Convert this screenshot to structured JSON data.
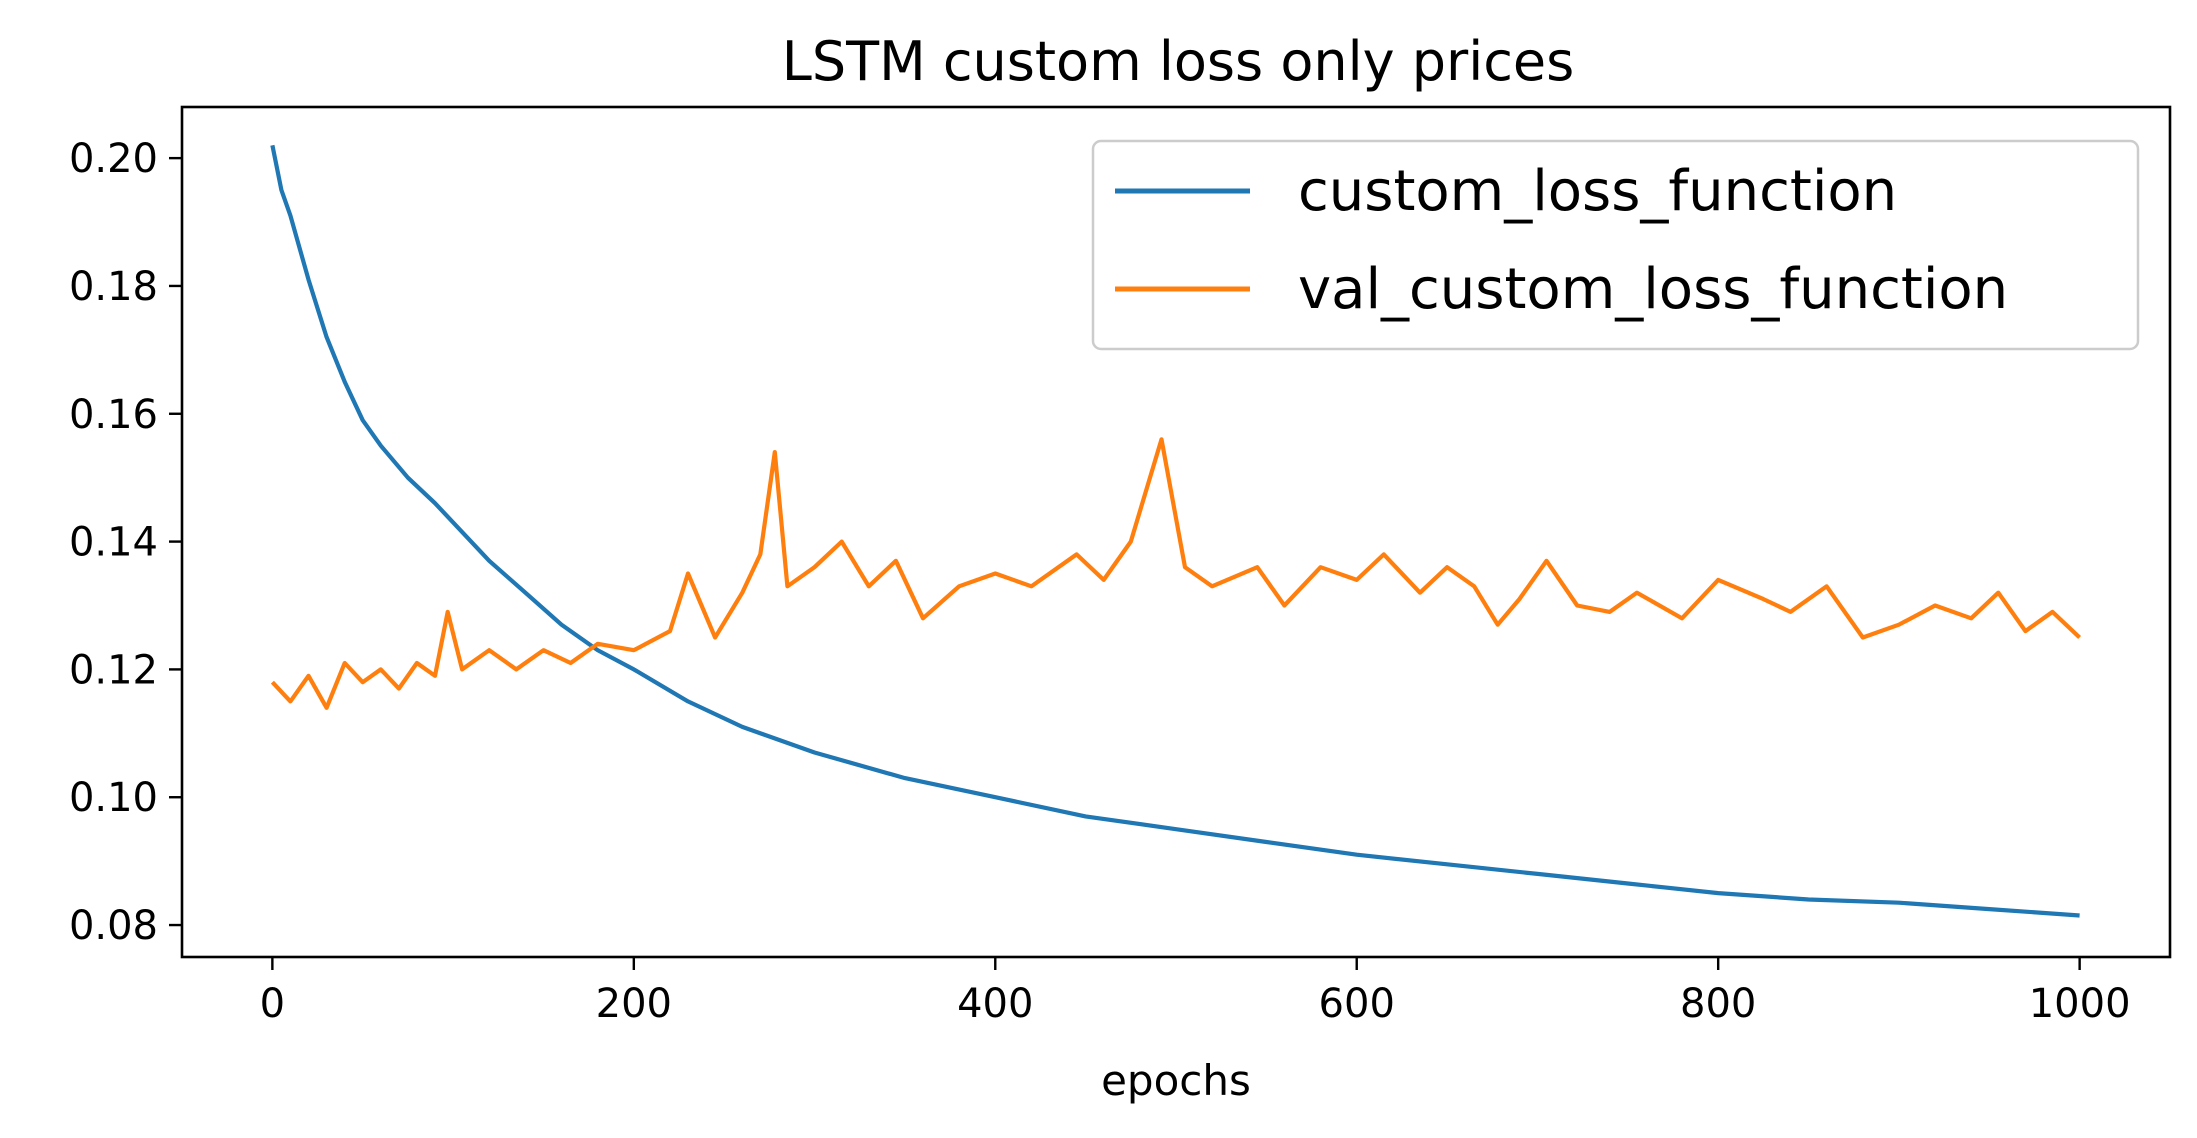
{
  "chart_data": {
    "type": "line",
    "title": "LSTM custom loss only prices",
    "xlabel": "epochs",
    "ylabel": "",
    "xlim": [
      -50,
      1050
    ],
    "ylim": [
      0.075,
      0.208
    ],
    "xticks": [
      0,
      200,
      400,
      600,
      800,
      1000
    ],
    "xtick_labels": [
      "0",
      "200",
      "400",
      "600",
      "800",
      "1000"
    ],
    "yticks": [
      0.08,
      0.1,
      0.12,
      0.14,
      0.16,
      0.18,
      0.2
    ],
    "ytick_labels": [
      "0.08",
      "0.10",
      "0.12",
      "0.14",
      "0.16",
      "0.18",
      "0.20"
    ],
    "grid": false,
    "legend_position": "top-right",
    "colors": {
      "custom_loss_function": "#1f77b4",
      "val_custom_loss_function": "#ff7f0e"
    },
    "series": [
      {
        "name": "custom_loss_function",
        "x": [
          0,
          5,
          10,
          20,
          30,
          40,
          50,
          60,
          75,
          90,
          100,
          120,
          140,
          160,
          180,
          200,
          230,
          260,
          300,
          350,
          400,
          450,
          500,
          550,
          600,
          650,
          700,
          750,
          800,
          850,
          900,
          950,
          1000
        ],
        "values": [
          0.202,
          0.195,
          0.191,
          0.181,
          0.172,
          0.165,
          0.159,
          0.155,
          0.15,
          0.146,
          0.143,
          0.137,
          0.132,
          0.127,
          0.123,
          0.12,
          0.115,
          0.111,
          0.107,
          0.103,
          0.1,
          0.097,
          0.095,
          0.093,
          0.091,
          0.0895,
          0.088,
          0.0865,
          0.085,
          0.084,
          0.0835,
          0.0825,
          0.0815
        ]
      },
      {
        "name": "val_custom_loss_function",
        "x": [
          0,
          10,
          20,
          30,
          40,
          50,
          60,
          70,
          80,
          90,
          97,
          105,
          120,
          135,
          150,
          165,
          180,
          200,
          220,
          230,
          245,
          260,
          270,
          278,
          285,
          300,
          315,
          330,
          345,
          360,
          380,
          400,
          420,
          445,
          460,
          475,
          492,
          505,
          520,
          545,
          560,
          580,
          600,
          615,
          635,
          650,
          665,
          678,
          690,
          705,
          722,
          740,
          755,
          780,
          800,
          825,
          840,
          860,
          880,
          900,
          920,
          940,
          955,
          970,
          985,
          1000
        ],
        "values": [
          0.118,
          0.115,
          0.119,
          0.114,
          0.121,
          0.118,
          0.12,
          0.117,
          0.121,
          0.119,
          0.129,
          0.12,
          0.123,
          0.12,
          0.123,
          0.121,
          0.124,
          0.123,
          0.126,
          0.135,
          0.125,
          0.132,
          0.138,
          0.154,
          0.133,
          0.136,
          0.14,
          0.133,
          0.137,
          0.128,
          0.133,
          0.135,
          0.133,
          0.138,
          0.134,
          0.14,
          0.156,
          0.136,
          0.133,
          0.136,
          0.13,
          0.136,
          0.134,
          0.138,
          0.132,
          0.136,
          0.133,
          0.127,
          0.131,
          0.137,
          0.13,
          0.129,
          0.132,
          0.128,
          0.134,
          0.131,
          0.129,
          0.133,
          0.125,
          0.127,
          0.13,
          0.128,
          0.132,
          0.126,
          0.129,
          0.125
        ]
      }
    ]
  }
}
